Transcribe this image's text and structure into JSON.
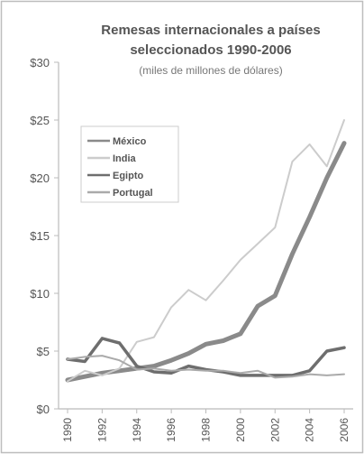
{
  "chart_data": {
    "type": "line",
    "title_line1": "Remesas internacionales a países",
    "title_line2": "seleccionados 1990-2006",
    "subtitle": "(miles de millones de dólares)",
    "xlabel": "",
    "ylabel": "",
    "x": [
      1990,
      1991,
      1992,
      1993,
      1994,
      1995,
      1996,
      1997,
      1998,
      1999,
      2000,
      2001,
      2002,
      2003,
      2004,
      2005,
      2006
    ],
    "x_tick_labels": [
      "1990",
      "1992",
      "1994",
      "1996",
      "1998",
      "2000",
      "2002",
      "2004",
      "2006"
    ],
    "x_tick_values": [
      1990,
      1992,
      1994,
      1996,
      1998,
      2000,
      2002,
      2004,
      2006
    ],
    "ylim": [
      0,
      30
    ],
    "y_tick_values": [
      0,
      5,
      10,
      15,
      20,
      25,
      30
    ],
    "y_tick_labels": [
      "$0",
      "$5",
      "$10",
      "$15",
      "$20",
      "$25",
      "$30"
    ],
    "grid": false,
    "legend_position": "upper-left",
    "series": [
      {
        "name": "México",
        "color": "#8a8a8a",
        "values": [
          2.5,
          2.8,
          3.1,
          3.3,
          3.5,
          3.7,
          4.2,
          4.8,
          5.6,
          5.9,
          6.5,
          8.9,
          9.8,
          13.4,
          16.6,
          20.0,
          23.0
        ]
      },
      {
        "name": "India",
        "color": "#cccccc",
        "values": [
          2.4,
          3.3,
          2.9,
          3.5,
          5.8,
          6.2,
          8.8,
          10.3,
          9.4,
          11.1,
          12.9,
          14.3,
          15.7,
          21.4,
          22.9,
          21.0,
          25.0
        ]
      },
      {
        "name": "Egipto",
        "color": "#6e6e6e",
        "values": [
          4.3,
          4.1,
          6.1,
          5.7,
          3.7,
          3.2,
          3.1,
          3.7,
          3.4,
          3.2,
          2.9,
          2.9,
          2.9,
          2.9,
          3.3,
          5.0,
          5.3
        ]
      },
      {
        "name": "Portugal",
        "color": "#aaaaaa",
        "values": [
          4.3,
          4.5,
          4.6,
          4.2,
          3.4,
          3.5,
          3.3,
          3.4,
          3.3,
          3.3,
          3.1,
          3.3,
          2.7,
          2.8,
          3.0,
          2.9,
          3.0
        ]
      }
    ]
  }
}
